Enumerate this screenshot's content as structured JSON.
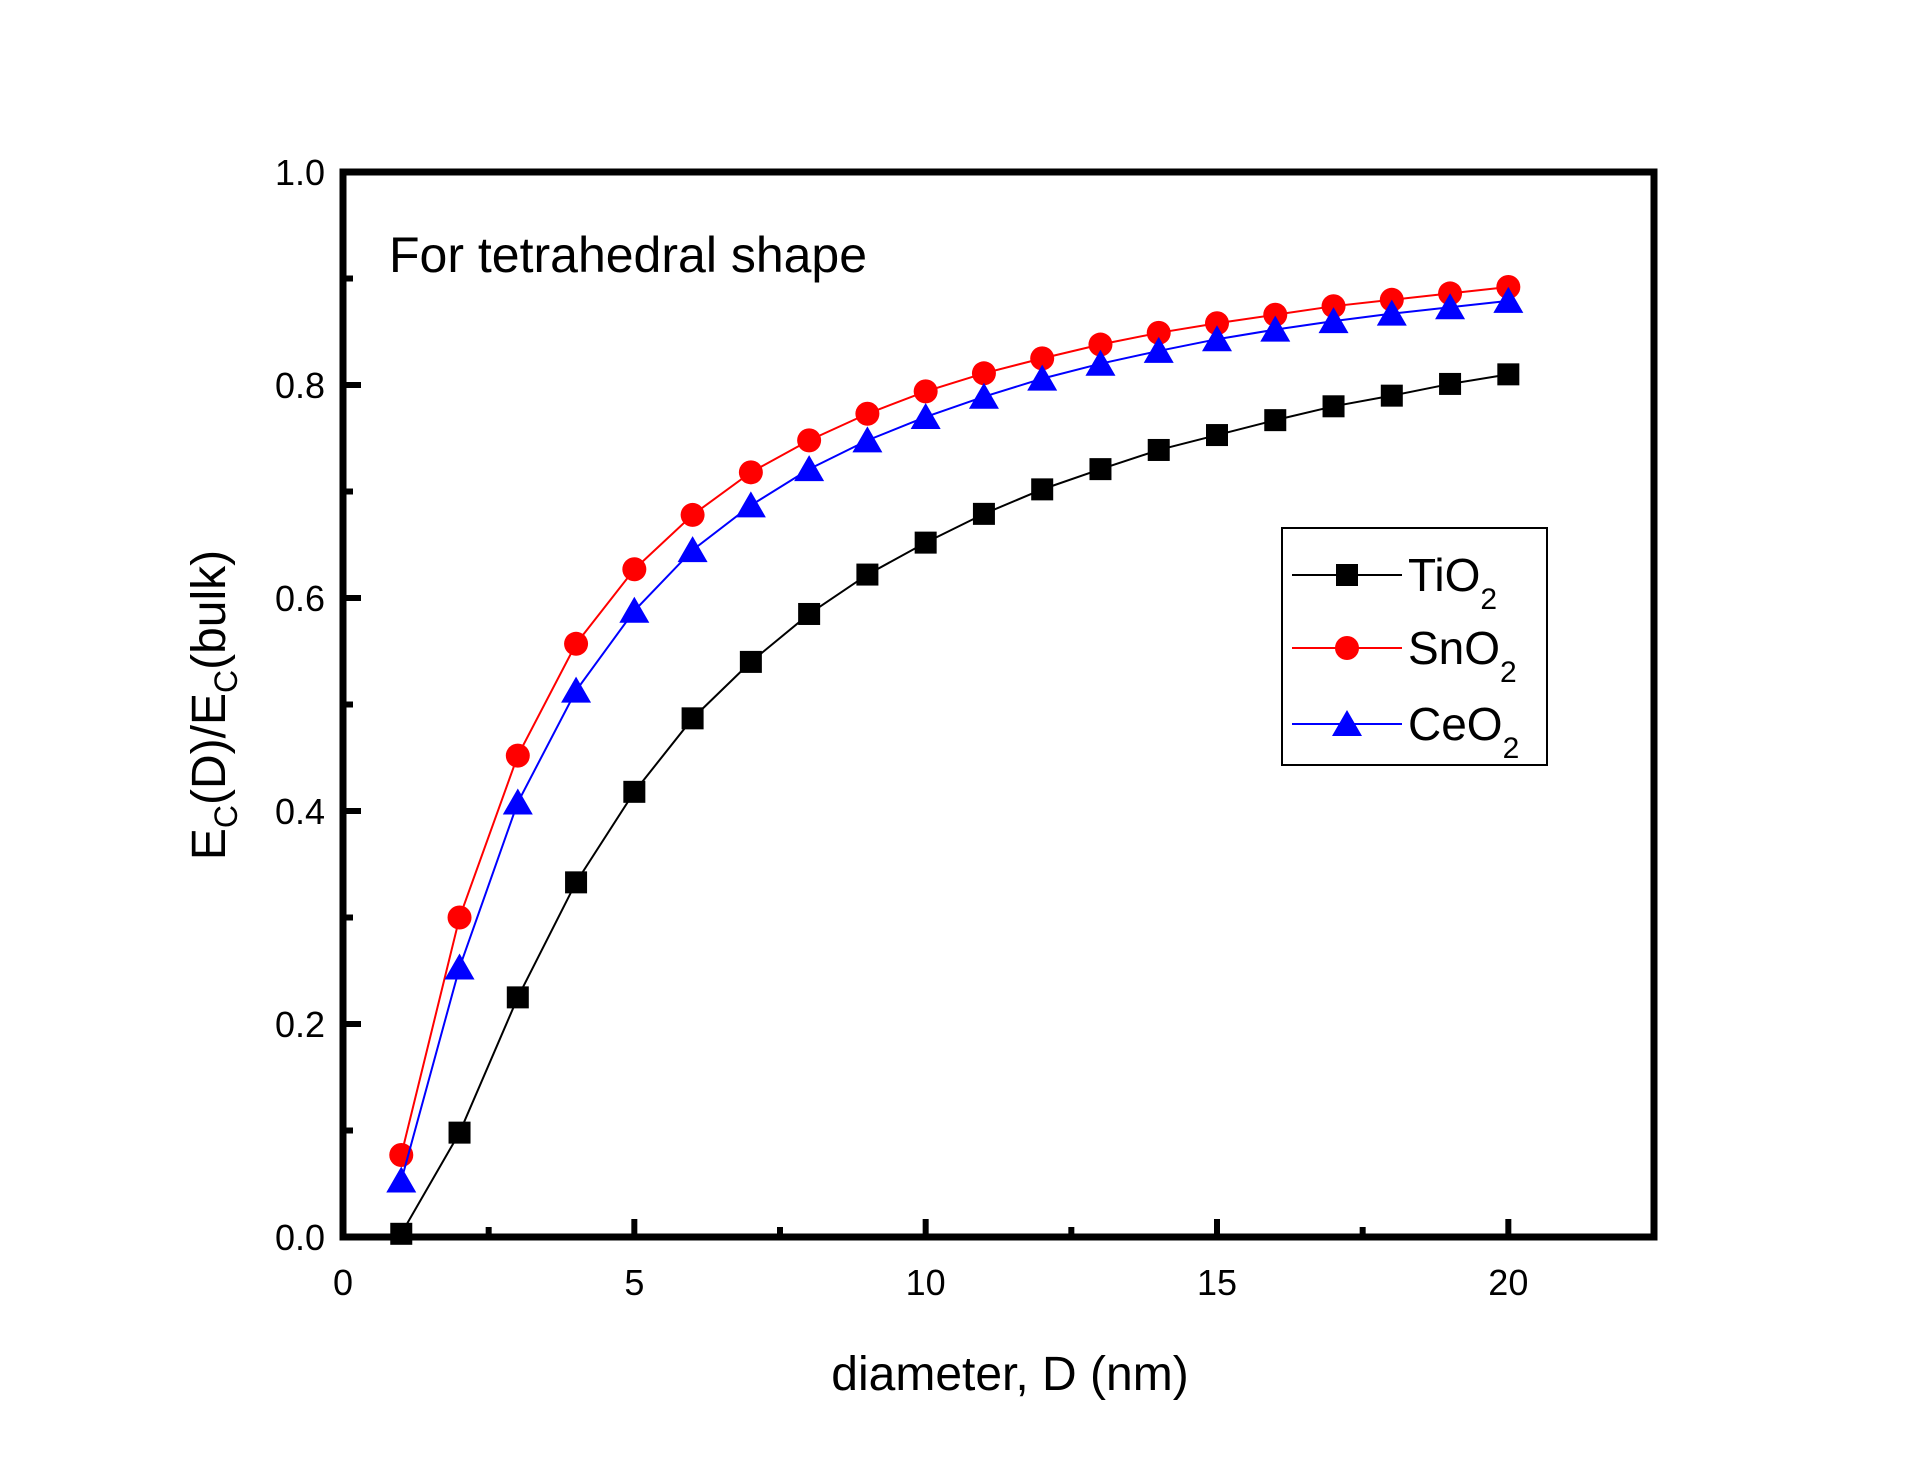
{
  "chart_data": {
    "type": "line",
    "title": "",
    "annotation": "For tetrahedral shape",
    "xlabel": "diameter, D (nm)",
    "ylabel": {
      "main": "E",
      "sub1": "C",
      "mid": "(D)/E",
      "sub2": "C",
      "end": "(bulk)"
    },
    "xlim": [
      0,
      22.5
    ],
    "ylim": [
      0,
      1.0
    ],
    "xticks": [
      0,
      5,
      10,
      15,
      20
    ],
    "xtick_labels": [
      "0",
      "5",
      "10",
      "15",
      "20"
    ],
    "x_minor_ticks": [
      2.5,
      7.5,
      12.5,
      17.5
    ],
    "yticks": [
      0.0,
      0.2,
      0.4,
      0.6,
      0.8,
      1.0
    ],
    "ytick_labels": [
      "0.0",
      "0.2",
      "0.4",
      "0.6",
      "0.8",
      "1.0"
    ],
    "y_minor_ticks": [
      0.1,
      0.3,
      0.5,
      0.7,
      0.9
    ],
    "grid": false,
    "legend_position": "center-right",
    "x": [
      1,
      2,
      3,
      4,
      5,
      6,
      7,
      8,
      9,
      10,
      11,
      12,
      13,
      14,
      15,
      16,
      17,
      18,
      19,
      20
    ],
    "series": [
      {
        "name": "TiO2",
        "label_main": "TiO",
        "label_sub": "2",
        "color": "#000000",
        "marker": "square",
        "values": [
          0.003,
          0.098,
          0.225,
          0.333,
          0.418,
          0.487,
          0.54,
          0.585,
          0.622,
          0.652,
          0.679,
          0.702,
          0.721,
          0.739,
          0.753,
          0.767,
          0.78,
          0.79,
          0.801,
          0.81
        ]
      },
      {
        "name": "SnO2",
        "label_main": "SnO",
        "label_sub": "2",
        "color": "#ff0000",
        "marker": "circle",
        "values": [
          0.077,
          0.3,
          0.452,
          0.557,
          0.627,
          0.678,
          0.718,
          0.748,
          0.773,
          0.794,
          0.811,
          0.825,
          0.838,
          0.849,
          0.858,
          0.866,
          0.874,
          0.88,
          0.886,
          0.892
        ]
      },
      {
        "name": "CeO2",
        "label_main": "CeO",
        "label_sub": "2",
        "color": "#0000ff",
        "marker": "triangle",
        "values": [
          0.053,
          0.253,
          0.408,
          0.513,
          0.588,
          0.645,
          0.687,
          0.721,
          0.748,
          0.77,
          0.789,
          0.806,
          0.82,
          0.832,
          0.843,
          0.852,
          0.86,
          0.867,
          0.873,
          0.879
        ]
      }
    ]
  }
}
